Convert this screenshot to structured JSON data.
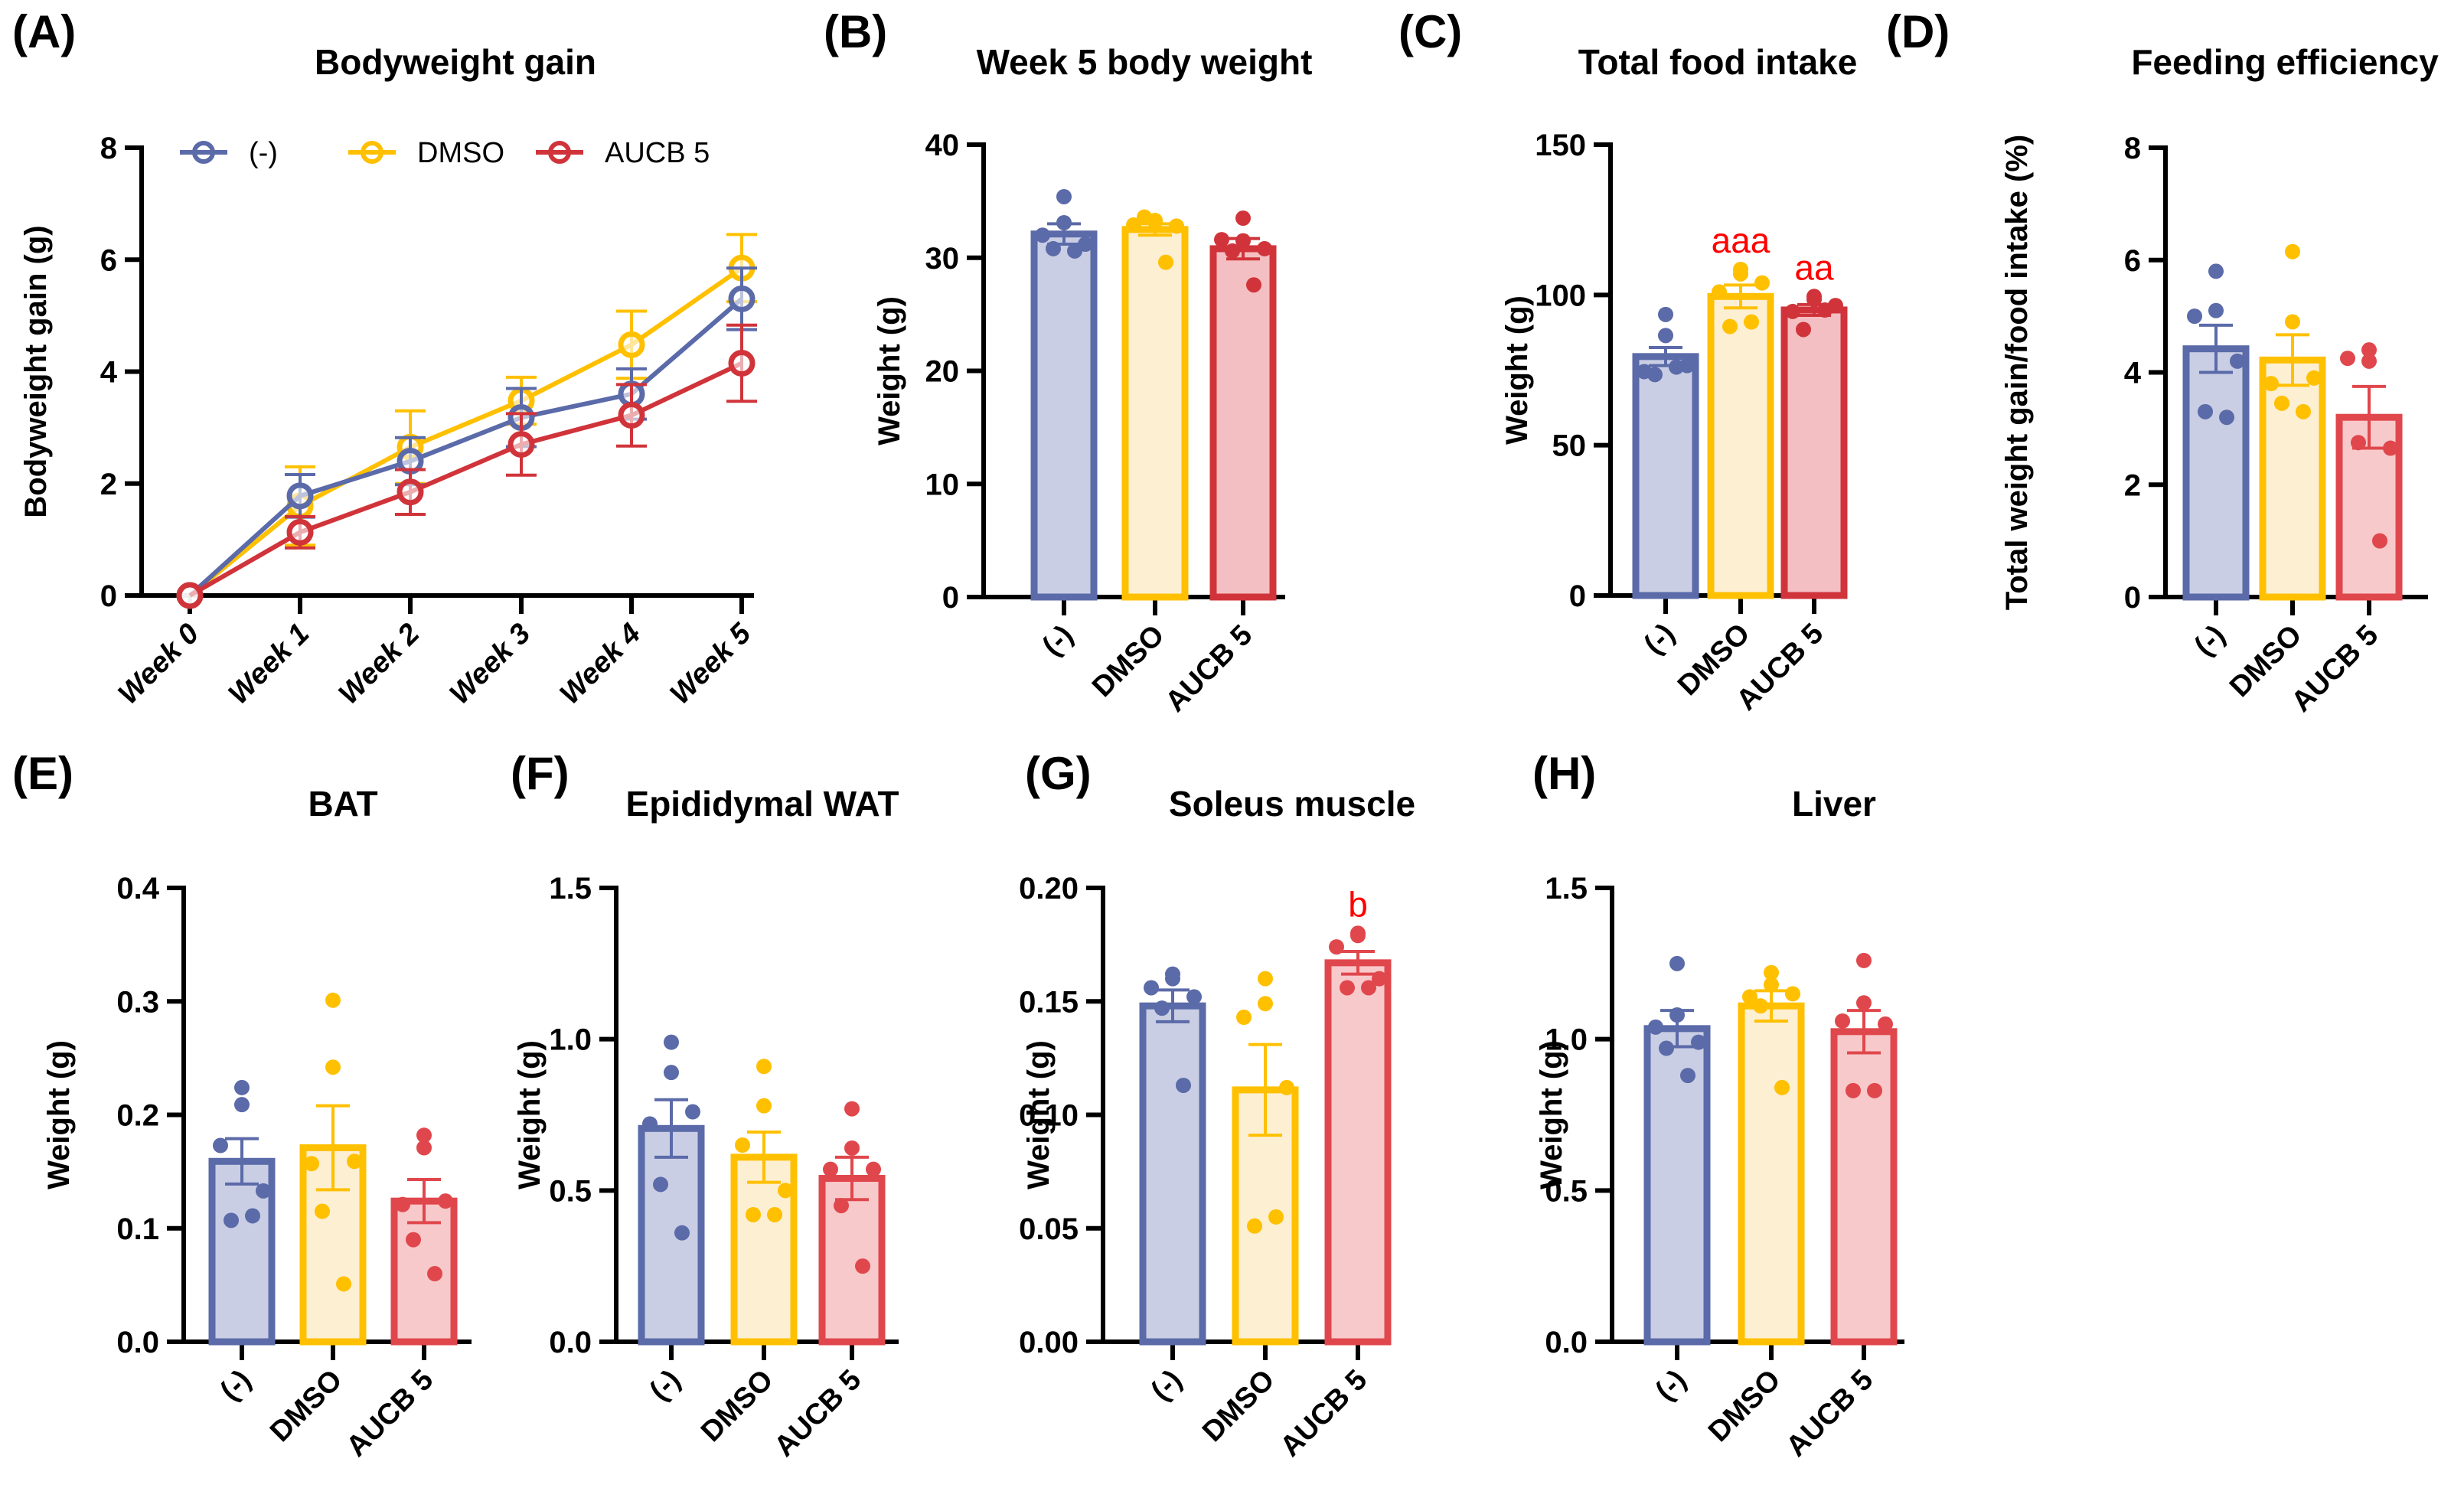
{
  "groups": [
    "(-)",
    "DMSO",
    "AUCB 5"
  ],
  "colors": {
    "(-)": {
      "stroke": "#5b6aa8",
      "fill": "#c9cee4",
      "dot": "#5b6aa8"
    },
    "DMSO": {
      "stroke": "#ffc000",
      "fill": "#fdefd2",
      "dot": "#ffc000"
    },
    "AUCB 5": {
      "stroke": "#d0343a",
      "fill": "#f3bfc2",
      "dot": "#d0343a"
    },
    "AUCB 5 light": {
      "stroke": "#e0474c",
      "fill": "#f8c9cb",
      "dot": "#e0474c"
    }
  },
  "chart_data": [
    {
      "id": "A",
      "panel_label": "(A)",
      "type": "line",
      "title": "Bodyweight gain",
      "xlabel": "",
      "ylabel": "Bodyweight gain (g)",
      "ylim": [
        0,
        8
      ],
      "yticks": [
        "0",
        "2",
        "4",
        "6",
        "8"
      ],
      "categories": [
        "Week 0",
        "Week 1",
        "Week 2",
        "Week 3",
        "Week 4",
        "Week 5"
      ],
      "legend": {
        "placement": "top",
        "entries": [
          "(-)",
          "DMSO",
          "AUCB 5"
        ]
      },
      "series": [
        {
          "name": "(-)",
          "values": [
            0,
            1.78,
            2.4,
            3.18,
            3.6,
            5.3
          ],
          "sem": [
            0,
            0.38,
            0.42,
            0.52,
            0.45,
            0.55
          ]
        },
        {
          "name": "DMSO",
          "values": [
            0,
            1.6,
            2.65,
            3.48,
            4.48,
            5.85
          ],
          "sem": [
            0,
            0.7,
            0.65,
            0.42,
            0.6,
            0.6
          ]
        },
        {
          "name": "AUCB 5",
          "values": [
            0,
            1.13,
            1.85,
            2.7,
            3.22,
            4.15
          ],
          "sem": [
            0,
            0.28,
            0.4,
            0.55,
            0.55,
            0.68
          ]
        }
      ]
    },
    {
      "id": "B",
      "panel_label": "(B)",
      "type": "bar",
      "title": "Week 5 body weight",
      "ylabel": "Weight (g)",
      "ylim": [
        0,
        40
      ],
      "yticks": [
        "0",
        "10",
        "20",
        "30",
        "40"
      ],
      "categories": [
        "(-)",
        "DMSO",
        "AUCB 5"
      ],
      "values": [
        32.1,
        32.5,
        30.8
      ],
      "sem": [
        0.9,
        0.5,
        0.9
      ],
      "points": [
        [
          35.4,
          33.1,
          32.0,
          31.2,
          30.8,
          30.6
        ],
        [
          33.3,
          33.2,
          32.9,
          32.8,
          33.6,
          29.6
        ],
        [
          33.5,
          31.5,
          31.6,
          30.8,
          30.6,
          27.6
        ]
      ],
      "annotations": [
        "",
        "",
        ""
      ]
    },
    {
      "id": "C",
      "panel_label": "(C)",
      "type": "bar",
      "title": "Total food intake",
      "ylabel": "Weight (g)",
      "ylim": [
        0,
        150
      ],
      "yticks": [
        "0",
        "50",
        "100",
        "150"
      ],
      "categories": [
        "(-)",
        "DMSO",
        "AUCB 5"
      ],
      "values": [
        79.5,
        99.5,
        95
      ],
      "sem": [
        3.0,
        3.8,
        1.8
      ],
      "points": [
        [
          93.5,
          86.5,
          74.5,
          76.5,
          73.5,
          76
        ],
        [
          107,
          108.5,
          101,
          104,
          89.5,
          91
        ],
        [
          98.5,
          99.5,
          94.5,
          96.5,
          88.5,
          95
        ]
      ],
      "annotations": [
        "",
        "aaa",
        "aa"
      ]
    },
    {
      "id": "D",
      "panel_label": "(D)",
      "type": "bar",
      "title": "Feeding efficiency",
      "ylabel": "Total weight gain/food intake (%)",
      "ylim": [
        0,
        8
      ],
      "yticks": [
        "0",
        "2",
        "4",
        "6",
        "8"
      ],
      "categories": [
        "(-)",
        "DMSO",
        "AUCB 5"
      ],
      "values": [
        4.42,
        4.22,
        3.2
      ],
      "sem": [
        0.42,
        0.45,
        0.55
      ],
      "points": [
        [
          5.8,
          5.1,
          5.0,
          4.2,
          3.3,
          3.2
        ],
        [
          6.15,
          4.9,
          3.8,
          3.9,
          3.45,
          3.3
        ],
        [
          4.4,
          4.2,
          4.25,
          2.65,
          2.75,
          1.0
        ]
      ],
      "annotations": [
        "",
        "",
        ""
      ]
    },
    {
      "id": "E",
      "panel_label": "(E)",
      "type": "bar",
      "title": "BAT",
      "ylabel": "Weight (g)",
      "ylim": [
        0,
        0.4
      ],
      "yticks": [
        "0.0",
        "0.1",
        "0.2",
        "0.3",
        "0.4"
      ],
      "categories": [
        "(-)",
        "DMSO",
        "AUCB 5"
      ],
      "values": [
        0.159,
        0.171,
        0.124
      ],
      "sem": [
        0.02,
        0.037,
        0.019
      ],
      "points": [
        [
          0.224,
          0.209,
          0.173,
          0.133,
          0.107,
          0.111
        ],
        [
          0.301,
          0.242,
          0.157,
          0.159,
          0.115,
          0.051
        ],
        [
          0.171,
          0.182,
          0.121,
          0.124,
          0.09,
          0.06
        ]
      ],
      "annotations": [
        "",
        "",
        ""
      ]
    },
    {
      "id": "F",
      "panel_label": "(F)",
      "type": "bar",
      "title": "Epididymal WAT",
      "ylabel": "Weight (g)",
      "ylim": [
        0,
        1.5
      ],
      "yticks": [
        "0.0",
        "0.5",
        "1.0",
        "1.5"
      ],
      "categories": [
        "(-)",
        "DMSO",
        "AUCB 5"
      ],
      "values": [
        0.705,
        0.61,
        0.54
      ],
      "sem": [
        0.095,
        0.083,
        0.07
      ],
      "points": [
        [
          0.99,
          0.89,
          0.72,
          0.76,
          0.52,
          0.36
        ],
        [
          0.91,
          0.78,
          0.65,
          0.5,
          0.42,
          0.42
        ],
        [
          0.77,
          0.64,
          0.57,
          0.57,
          0.45,
          0.25
        ]
      ],
      "annotations": [
        "",
        "",
        ""
      ]
    },
    {
      "id": "G",
      "panel_label": "(G)",
      "type": "bar",
      "title": "Soleus muscle",
      "ylabel": "Weight (g)",
      "ylim": [
        0,
        0.2
      ],
      "yticks": [
        "0.00",
        "0.05",
        "0.10",
        "0.15",
        "0.20"
      ],
      "categories": [
        "(-)",
        "DMSO",
        "AUCB 5"
      ],
      "values": [
        0.148,
        0.111,
        0.167
      ],
      "sem": [
        0.007,
        0.02,
        0.005
      ],
      "points": [
        [
          0.162,
          0.16,
          0.156,
          0.152,
          0.147,
          0.113
        ],
        [
          0.16,
          0.149,
          0.143,
          0.112,
          0.051,
          0.055
        ],
        [
          0.179,
          0.18,
          0.174,
          0.16,
          0.156,
          0.156
        ]
      ],
      "annotations": [
        "",
        "",
        "b"
      ]
    },
    {
      "id": "H",
      "panel_label": "(H)",
      "type": "bar",
      "title": "Liver",
      "ylabel": "Weight (g)",
      "ylim": [
        0,
        1.5
      ],
      "yticks": [
        "0.0",
        "0.5",
        "1.0",
        "1.5"
      ],
      "categories": [
        "(-)",
        "DMSO",
        "AUCB 5"
      ],
      "values": [
        1.035,
        1.11,
        1.025
      ],
      "sem": [
        0.06,
        0.05,
        0.07
      ],
      "points": [
        [
          1.25,
          1.08,
          1.04,
          0.99,
          0.97,
          0.88
        ],
        [
          1.22,
          1.18,
          1.14,
          1.15,
          1.11,
          0.84
        ],
        [
          1.26,
          1.12,
          1.06,
          1.05,
          0.83,
          0.83
        ]
      ],
      "annotations": [
        "",
        "",
        ""
      ]
    }
  ]
}
